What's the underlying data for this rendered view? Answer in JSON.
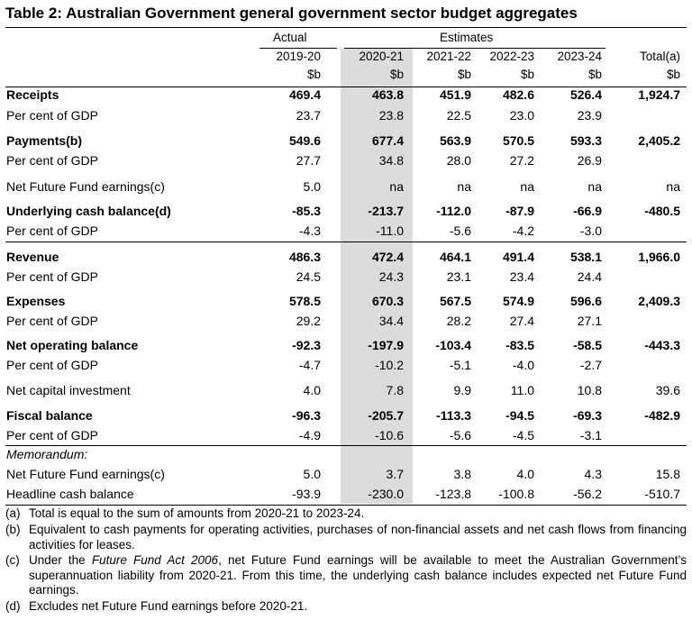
{
  "title": "Table 2: Australian Government general government sector budget aggregates",
  "header": {
    "actual": "Actual",
    "estimates": "Estimates",
    "years": [
      "2019-20",
      "2020-21",
      "2021-22",
      "2022-23",
      "2023-24",
      "Total(a)"
    ],
    "units": [
      "$b",
      "$b",
      "$b",
      "$b",
      "$b",
      "$b"
    ]
  },
  "rows": [
    {
      "label": "Receipts",
      "values": [
        "469.4",
        "463.8",
        "451.9",
        "482.6",
        "526.4",
        "1,924.7"
      ]
    },
    {
      "label": "Per cent of GDP",
      "values": [
        "23.7",
        "23.8",
        "22.5",
        "23.0",
        "23.9",
        ""
      ]
    },
    {
      "label": "Payments(b)",
      "values": [
        "549.6",
        "677.4",
        "563.9",
        "570.5",
        "593.3",
        "2,405.2"
      ]
    },
    {
      "label": "Per cent of GDP",
      "values": [
        "27.7",
        "34.8",
        "28.0",
        "27.2",
        "26.9",
        ""
      ]
    },
    {
      "label": "Net Future Fund earnings(c)",
      "values": [
        "5.0",
        "na",
        "na",
        "na",
        "na",
        "na"
      ]
    },
    {
      "label": "Underlying cash balance(d)",
      "values": [
        "-85.3",
        "-213.7",
        "-112.0",
        "-87.9",
        "-66.9",
        "-480.5"
      ]
    },
    {
      "label": "Per cent of GDP",
      "values": [
        "-4.3",
        "-11.0",
        "-5.6",
        "-4.2",
        "-3.0",
        ""
      ]
    },
    {
      "label": "Revenue",
      "values": [
        "486.3",
        "472.4",
        "464.1",
        "491.4",
        "538.1",
        "1,966.0"
      ]
    },
    {
      "label": "Per cent of GDP",
      "values": [
        "24.5",
        "24.3",
        "23.1",
        "23.4",
        "24.4",
        ""
      ]
    },
    {
      "label": "Expenses",
      "values": [
        "578.5",
        "670.3",
        "567.5",
        "574.9",
        "596.6",
        "2,409.3"
      ]
    },
    {
      "label": "Per cent of GDP",
      "values": [
        "29.2",
        "34.4",
        "28.2",
        "27.4",
        "27.1",
        ""
      ]
    },
    {
      "label": "Net operating balance",
      "values": [
        "-92.3",
        "-197.9",
        "-103.4",
        "-83.5",
        "-58.5",
        "-443.3"
      ]
    },
    {
      "label": "Per cent of GDP",
      "values": [
        "-4.7",
        "-10.2",
        "-5.1",
        "-4.0",
        "-2.7",
        ""
      ]
    },
    {
      "label": "Net capital investment",
      "values": [
        "4.0",
        "7.8",
        "9.9",
        "11.0",
        "10.8",
        "39.6"
      ]
    },
    {
      "label": "Fiscal balance",
      "values": [
        "-96.3",
        "-205.7",
        "-113.3",
        "-94.5",
        "-69.3",
        "-482.9"
      ]
    },
    {
      "label": "Per cent of GDP",
      "values": [
        "-4.9",
        "-10.6",
        "-5.6",
        "-4.5",
        "-3.1",
        ""
      ]
    },
    {
      "label": "Memorandum:",
      "values": [
        "",
        "",
        "",
        "",
        "",
        ""
      ]
    },
    {
      "label": "Net Future Fund earnings(c)",
      "values": [
        "5.0",
        "3.7",
        "3.8",
        "4.0",
        "4.3",
        "15.8"
      ]
    },
    {
      "label": "Headline cash balance",
      "values": [
        "-93.9",
        "-230.0",
        "-123.8",
        "-100.8",
        "-56.2",
        "-510.7"
      ]
    }
  ],
  "notes": [
    {
      "tag": "(a)",
      "text": "Total is equal to the sum of amounts from 2020-21 to 2023-24."
    },
    {
      "tag": "(b)",
      "text": "Equivalent to cash payments for operating activities, purchases of non-financial assets and net cash flows from financing activities for leases."
    },
    {
      "tag": "(c)",
      "pre": "Under the ",
      "em": "Future Fund Act 2006",
      "post": ", net Future Fund earnings will be available to meet the Australian Government’s superannuation liability from 2020-21. From this time, the underlying cash balance includes expected net Future Fund earnings."
    },
    {
      "tag": "(d)",
      "text": "Excludes net Future Fund earnings before 2020-21."
    }
  ]
}
